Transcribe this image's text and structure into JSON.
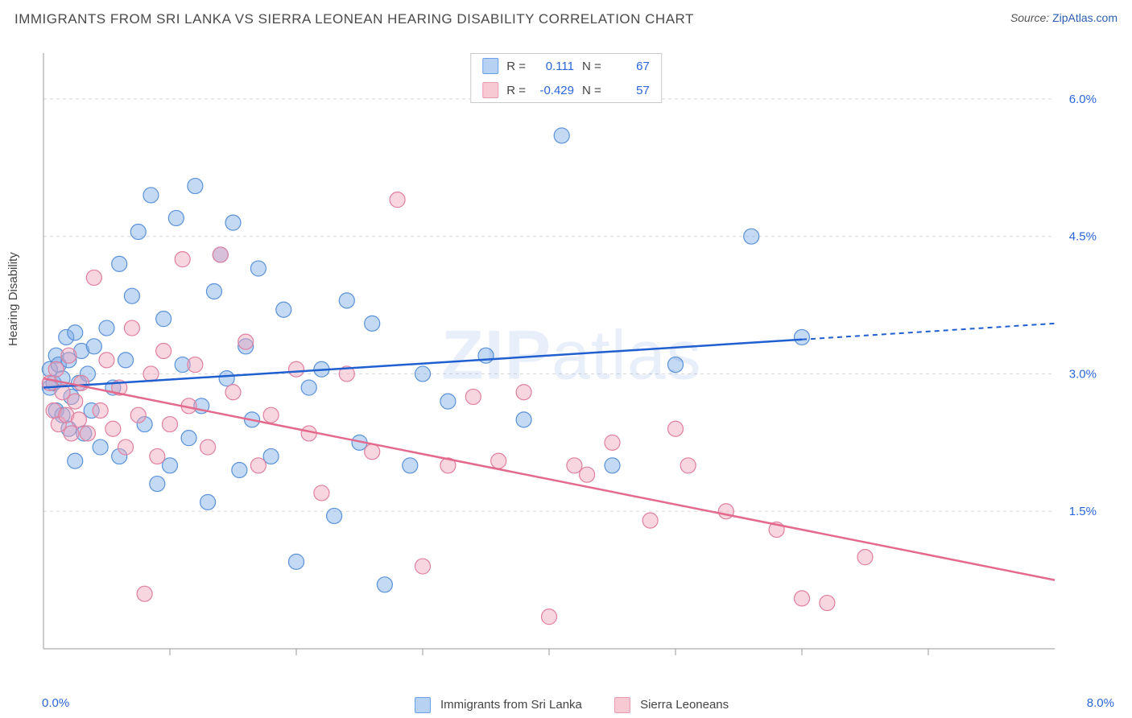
{
  "title": "IMMIGRANTS FROM SRI LANKA VS SIERRA LEONEAN HEARING DISABILITY CORRELATION CHART",
  "source_label": "Source:",
  "source_name": "ZipAtlas.com",
  "y_label": "Hearing Disability",
  "watermark": {
    "zip": "ZIP",
    "atlas": "atlas"
  },
  "x_axis": {
    "min_label": "0.0%",
    "max_label": "8.0%",
    "min": 0.0,
    "max": 8.0,
    "tick_step": 1.0
  },
  "y_axis": {
    "min": 0.0,
    "max": 6.5,
    "ticks": [
      1.5,
      3.0,
      4.5,
      6.0
    ],
    "tick_labels": [
      "1.5%",
      "3.0%",
      "4.5%",
      "6.0%"
    ]
  },
  "grid_color": "#d8d8d8",
  "axis_color": "#999999",
  "background_color": "#ffffff",
  "r_legend": {
    "rows": [
      {
        "swatch_fill": "#b7d1f3",
        "swatch_stroke": "#6aa0e6",
        "r_label": "R =",
        "r_val": "0.111",
        "n_label": "N =",
        "n_val": "67"
      },
      {
        "swatch_fill": "#f6c9d3",
        "swatch_stroke": "#e89ab0",
        "r_label": "R =",
        "r_val": "-0.429",
        "n_label": "N =",
        "n_val": "57"
      }
    ]
  },
  "bottom_legend": [
    {
      "swatch_fill": "#b7d1f3",
      "swatch_stroke": "#6aa0e6",
      "label": "Immigrants from Sri Lanka"
    },
    {
      "swatch_fill": "#f6c9d3",
      "swatch_stroke": "#e89ab0",
      "label": "Sierra Leoneans"
    }
  ],
  "series": [
    {
      "name": "sri_lanka",
      "color_fill": "rgba(122,170,230,0.45)",
      "color_stroke": "#5a92d8",
      "trend": {
        "color": "#1f5fd0",
        "y_at_x0": 2.85,
        "y_at_x8": 3.55,
        "solid_until_x": 6.0
      },
      "points": [
        [
          0.05,
          2.85
        ],
        [
          0.05,
          3.05
        ],
        [
          0.08,
          2.9
        ],
        [
          0.1,
          3.2
        ],
        [
          0.1,
          2.6
        ],
        [
          0.12,
          3.1
        ],
        [
          0.15,
          2.95
        ],
        [
          0.15,
          2.55
        ],
        [
          0.18,
          3.4
        ],
        [
          0.2,
          3.15
        ],
        [
          0.2,
          2.4
        ],
        [
          0.22,
          2.75
        ],
        [
          0.25,
          3.45
        ],
        [
          0.25,
          2.05
        ],
        [
          0.28,
          2.9
        ],
        [
          0.3,
          3.25
        ],
        [
          0.32,
          2.35
        ],
        [
          0.35,
          3.0
        ],
        [
          0.38,
          2.6
        ],
        [
          0.4,
          3.3
        ],
        [
          0.45,
          2.2
        ],
        [
          0.5,
          3.5
        ],
        [
          0.55,
          2.85
        ],
        [
          0.6,
          4.2
        ],
        [
          0.6,
          2.1
        ],
        [
          0.65,
          3.15
        ],
        [
          0.7,
          3.85
        ],
        [
          0.75,
          4.55
        ],
        [
          0.8,
          2.45
        ],
        [
          0.85,
          4.95
        ],
        [
          0.9,
          1.8
        ],
        [
          0.95,
          3.6
        ],
        [
          1.0,
          2.0
        ],
        [
          1.05,
          4.7
        ],
        [
          1.1,
          3.1
        ],
        [
          1.15,
          2.3
        ],
        [
          1.2,
          5.05
        ],
        [
          1.25,
          2.65
        ],
        [
          1.3,
          1.6
        ],
        [
          1.35,
          3.9
        ],
        [
          1.4,
          4.3
        ],
        [
          1.45,
          2.95
        ],
        [
          1.5,
          4.65
        ],
        [
          1.55,
          1.95
        ],
        [
          1.6,
          3.3
        ],
        [
          1.65,
          2.5
        ],
        [
          1.7,
          4.15
        ],
        [
          1.8,
          2.1
        ],
        [
          1.9,
          3.7
        ],
        [
          2.0,
          0.95
        ],
        [
          2.1,
          2.85
        ],
        [
          2.2,
          3.05
        ],
        [
          2.3,
          1.45
        ],
        [
          2.4,
          3.8
        ],
        [
          2.5,
          2.25
        ],
        [
          2.6,
          3.55
        ],
        [
          2.7,
          0.7
        ],
        [
          2.9,
          2.0
        ],
        [
          3.0,
          3.0
        ],
        [
          3.2,
          2.7
        ],
        [
          3.5,
          3.2
        ],
        [
          3.8,
          2.5
        ],
        [
          4.1,
          5.6
        ],
        [
          4.5,
          2.0
        ],
        [
          5.0,
          3.1
        ],
        [
          5.6,
          4.5
        ],
        [
          6.0,
          3.4
        ]
      ]
    },
    {
      "name": "sierra_leone",
      "color_fill": "rgba(240,163,186,0.45)",
      "color_stroke": "#e07f9f",
      "trend": {
        "color": "#e36a8d",
        "y_at_x0": 2.95,
        "y_at_x8": 0.75,
        "solid_until_x": 8.0
      },
      "points": [
        [
          0.05,
          2.9
        ],
        [
          0.08,
          2.6
        ],
        [
          0.1,
          3.05
        ],
        [
          0.12,
          2.45
        ],
        [
          0.15,
          2.8
        ],
        [
          0.18,
          2.55
        ],
        [
          0.2,
          3.2
        ],
        [
          0.22,
          2.35
        ],
        [
          0.25,
          2.7
        ],
        [
          0.28,
          2.5
        ],
        [
          0.3,
          2.9
        ],
        [
          0.35,
          2.35
        ],
        [
          0.4,
          4.05
        ],
        [
          0.45,
          2.6
        ],
        [
          0.5,
          3.15
        ],
        [
          0.55,
          2.4
        ],
        [
          0.6,
          2.85
        ],
        [
          0.65,
          2.2
        ],
        [
          0.7,
          3.5
        ],
        [
          0.75,
          2.55
        ],
        [
          0.8,
          0.6
        ],
        [
          0.85,
          3.0
        ],
        [
          0.9,
          2.1
        ],
        [
          0.95,
          3.25
        ],
        [
          1.0,
          2.45
        ],
        [
          1.1,
          4.25
        ],
        [
          1.15,
          2.65
        ],
        [
          1.2,
          3.1
        ],
        [
          1.3,
          2.2
        ],
        [
          1.4,
          4.3
        ],
        [
          1.5,
          2.8
        ],
        [
          1.6,
          3.35
        ],
        [
          1.7,
          2.0
        ],
        [
          1.8,
          2.55
        ],
        [
          2.0,
          3.05
        ],
        [
          2.1,
          2.35
        ],
        [
          2.2,
          1.7
        ],
        [
          2.4,
          3.0
        ],
        [
          2.6,
          2.15
        ],
        [
          2.8,
          4.9
        ],
        [
          3.0,
          0.9
        ],
        [
          3.2,
          2.0
        ],
        [
          3.4,
          2.75
        ],
        [
          3.6,
          2.05
        ],
        [
          3.8,
          2.8
        ],
        [
          4.0,
          0.35
        ],
        [
          4.2,
          2.0
        ],
        [
          4.5,
          2.25
        ],
        [
          4.8,
          1.4
        ],
        [
          5.1,
          2.0
        ],
        [
          5.4,
          1.5
        ],
        [
          5.8,
          1.3
        ],
        [
          6.2,
          0.5
        ],
        [
          6.5,
          1.0
        ],
        [
          6.0,
          0.55
        ],
        [
          5.0,
          2.4
        ],
        [
          4.3,
          1.9
        ]
      ]
    }
  ]
}
